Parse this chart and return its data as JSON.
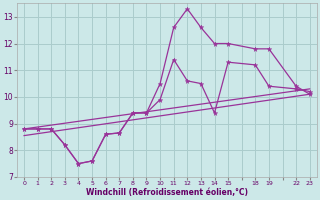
{
  "xlabel": "Windchill (Refroidissement éolien,°C)",
  "bg_color": "#cce8e8",
  "grid_color": "#aacccc",
  "line_color": "#993399",
  "xtick_labels": [
    "0",
    "1",
    "2",
    "3",
    "4",
    "5",
    "6",
    "7",
    "8",
    "9",
    "10",
    "11",
    "12",
    "13",
    "14",
    "15",
    "",
    "18",
    "19",
    "",
    "22",
    "23"
  ],
  "yticks": [
    7,
    8,
    9,
    10,
    11,
    12,
    13
  ],
  "ylim": [
    7.0,
    13.5
  ],
  "line1_idx": [
    0,
    1,
    2,
    3,
    4,
    5,
    6,
    7,
    8,
    9,
    10,
    11,
    12,
    13,
    14,
    15,
    17,
    18,
    20,
    21
  ],
  "line1_y": [
    8.8,
    8.8,
    8.8,
    8.2,
    7.5,
    7.6,
    8.6,
    8.65,
    9.4,
    9.4,
    9.9,
    11.4,
    10.6,
    10.5,
    9.4,
    11.3,
    11.2,
    10.4,
    10.3,
    10.2
  ],
  "line2_idx": [
    0,
    1,
    2,
    3,
    4,
    5,
    6,
    7,
    8,
    9,
    10,
    11,
    12,
    13,
    14,
    15,
    17,
    18,
    20,
    21
  ],
  "line2_y": [
    8.8,
    8.8,
    8.8,
    8.2,
    7.5,
    7.6,
    8.6,
    8.65,
    9.4,
    9.4,
    10.5,
    12.6,
    13.3,
    12.6,
    12.0,
    12.0,
    11.8,
    11.8,
    10.4,
    10.1
  ],
  "line3_idx": [
    0,
    21
  ],
  "line3_y": [
    8.8,
    10.3
  ],
  "line4_idx": [
    0,
    21
  ],
  "line4_y": [
    8.55,
    10.1
  ],
  "n_xticks": 22
}
